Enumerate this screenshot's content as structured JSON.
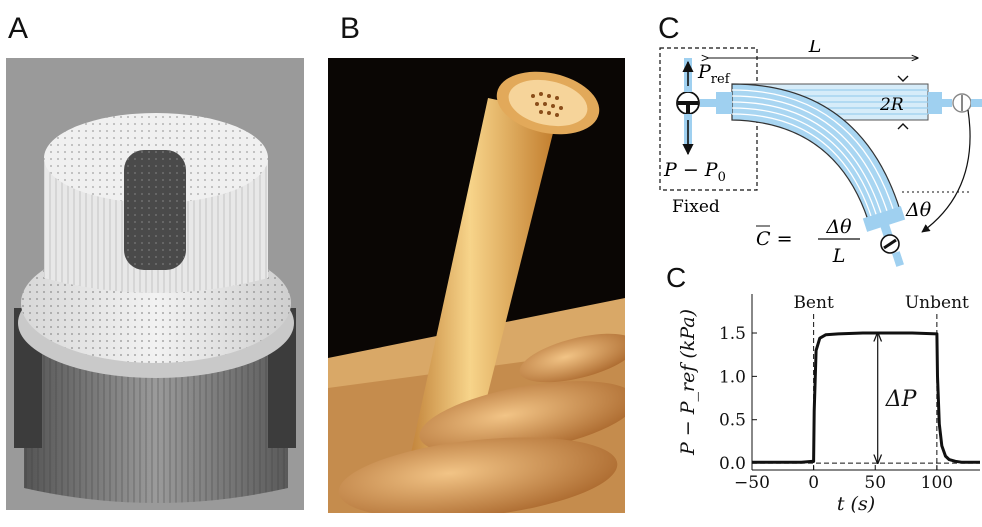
{
  "panels": {
    "a": {
      "letter": "A"
    },
    "b": {
      "letter": "B"
    },
    "c": {
      "letter": "C"
    }
  },
  "schematic": {
    "length_symbol": "L",
    "p_ref_base": "P",
    "p_ref_sub": "ref",
    "p_minus_p0": "P − P",
    "p0_sub": "0",
    "fixed_label": "Fixed",
    "diameter_label": "2R",
    "angle_label": "Δθ",
    "curvature_lhs": "C = ",
    "curvature_num": "Δθ",
    "curvature_den": "L"
  },
  "colors": {
    "channel_blue": "#a9d6f2",
    "channel_line": "#6fb8e6",
    "connector_blue": "#9fd0f0",
    "photo_background": "#0a0604",
    "scan_background": "#9a9a9a"
  },
  "chart_data": {
    "type": "line",
    "xlabel": "t (s)",
    "ylabel": "P − P_ref (kPa)",
    "xlim": [
      -50,
      135
    ],
    "ylim": [
      -0.08,
      1.95
    ],
    "xticks": [
      -50,
      0,
      50,
      100
    ],
    "yticks": [
      0.0,
      0.5,
      1.0,
      1.5
    ],
    "xtick_labels": [
      "−50",
      "0",
      "50",
      "100"
    ],
    "ytick_labels": [
      "0.0",
      "0.5",
      "1.0",
      "1.5"
    ],
    "series": [
      {
        "x": [
          -50,
          -10,
          0,
          0.5,
          2,
          5,
          10,
          20,
          40,
          60,
          80,
          100,
          100.5,
          102,
          104,
          107,
          110,
          115,
          120,
          135
        ],
        "y": [
          0.01,
          0.01,
          0.02,
          0.6,
          1.3,
          1.44,
          1.48,
          1.49,
          1.5,
          1.5,
          1.5,
          1.49,
          1.0,
          0.45,
          0.2,
          0.08,
          0.04,
          0.02,
          0.01,
          0.01
        ]
      }
    ],
    "annotations": [
      {
        "text": "Bent",
        "x": 0,
        "style": "dashed-vertical"
      },
      {
        "text": "Unbent",
        "x": 100,
        "style": "dashed-vertical"
      },
      {
        "text": "ΔP",
        "style": "double-arrow",
        "x": 52,
        "y_from": 0.0,
        "y_to": 1.5
      }
    ],
    "zero_line": "dashed"
  }
}
